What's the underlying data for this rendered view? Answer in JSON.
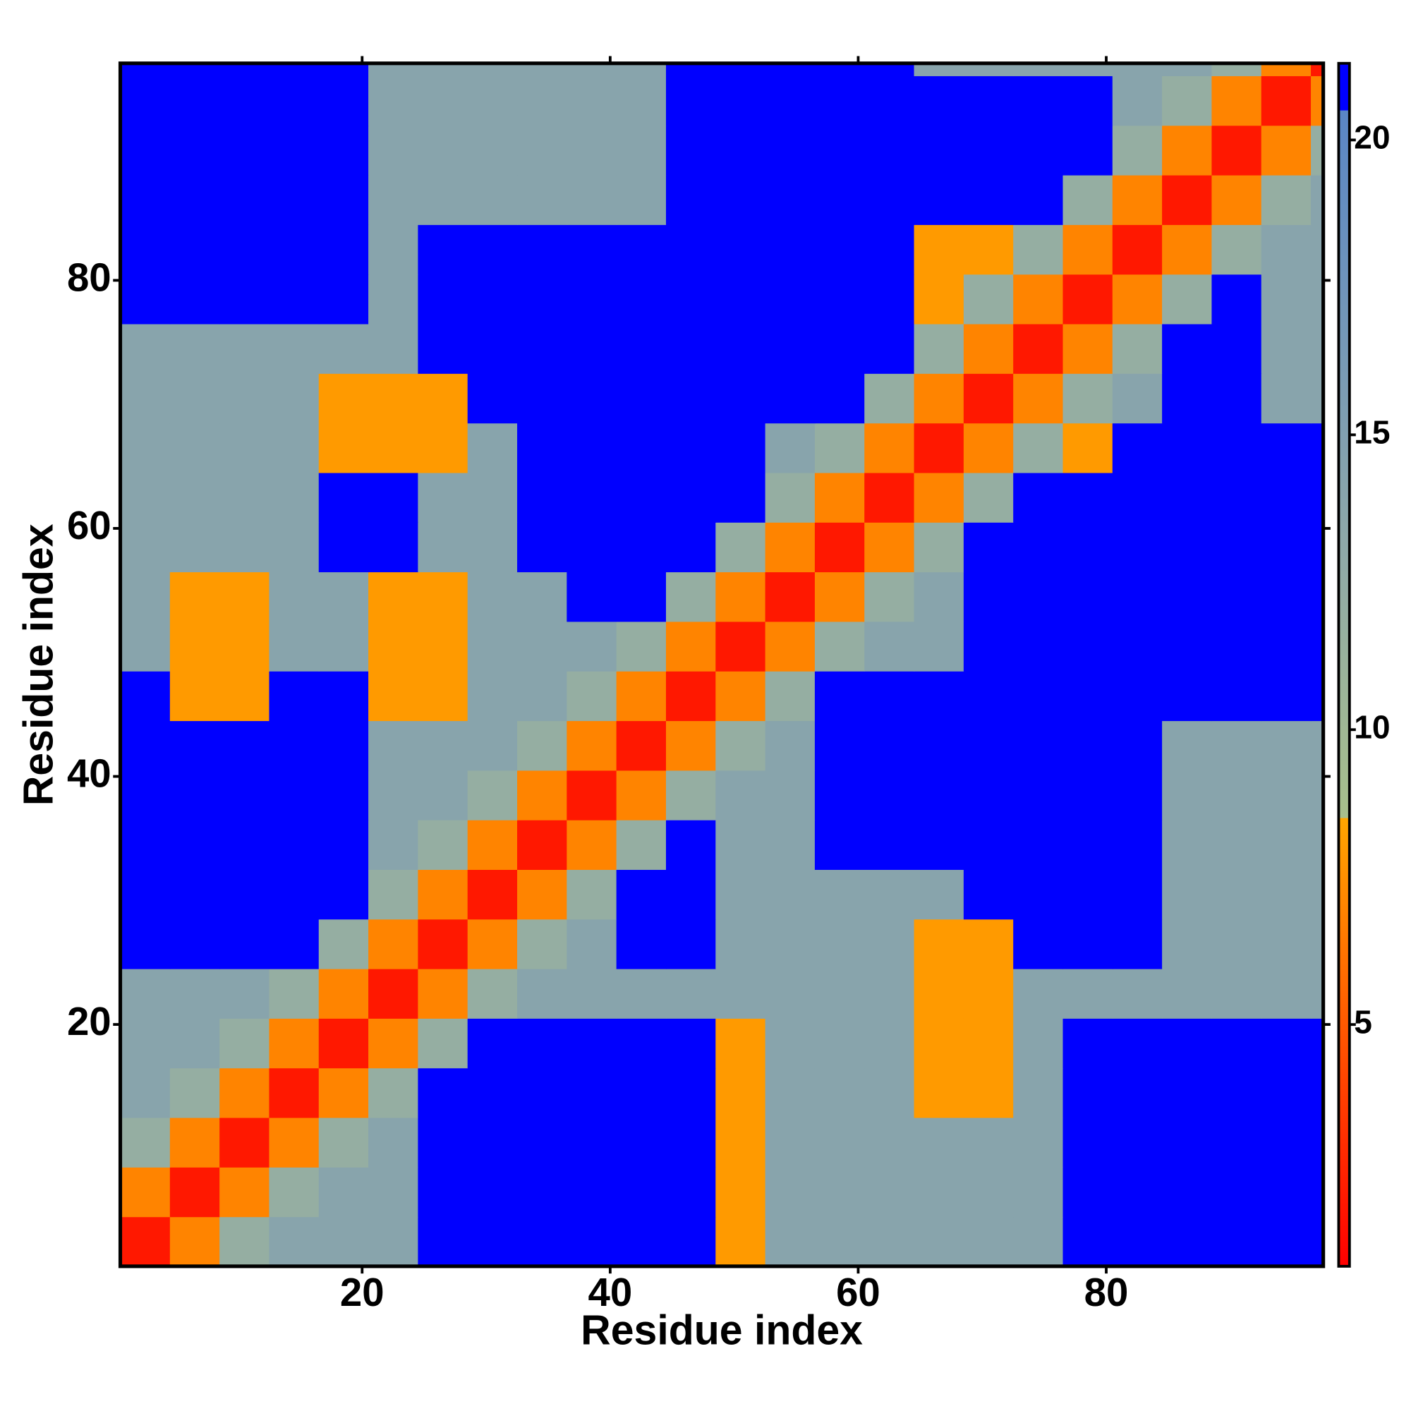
{
  "chart_data": {
    "type": "heatmap",
    "x_label": "Residue index",
    "y_label": "Residue index",
    "xlim": [
      0.5,
      97.5
    ],
    "ylim": [
      0.5,
      97.5
    ],
    "xticks": [
      20,
      40,
      60,
      80
    ],
    "yticks": [
      20,
      40,
      60,
      80
    ],
    "xbins": [
      0.5,
      4.5,
      8.5,
      12.5,
      16.5,
      20.5,
      24.5,
      28.5,
      32.5,
      36.5,
      40.5,
      44.5,
      48.5,
      52.5,
      56.5,
      60.5,
      64.5,
      68.5,
      72.5,
      76.5,
      80.5,
      84.5,
      88.5,
      92.5,
      96.5,
      97.5
    ],
    "ybins": [
      0.5,
      4.5,
      8.5,
      12.5,
      16.5,
      20.5,
      24.5,
      28.5,
      32.5,
      36.5,
      40.5,
      44.5,
      48.5,
      52.5,
      56.5,
      60.5,
      64.5,
      68.5,
      72.5,
      76.5,
      80.5,
      84.5,
      88.5,
      92.5,
      96.5,
      97.5
    ],
    "z": [
      [
        2,
        7,
        12,
        14,
        14,
        14,
        21,
        21,
        21,
        21,
        21,
        21,
        8,
        14,
        14,
        14,
        14,
        14,
        14,
        21,
        21,
        21,
        21,
        21,
        21
      ],
      [
        7,
        2,
        7,
        12,
        14,
        14,
        21,
        21,
        21,
        21,
        21,
        21,
        8,
        14,
        14,
        14,
        14,
        14,
        14,
        21,
        21,
        21,
        21,
        21,
        21
      ],
      [
        12,
        7,
        2,
        7,
        12,
        14,
        21,
        21,
        21,
        21,
        21,
        21,
        8,
        14,
        14,
        14,
        14,
        14,
        14,
        21,
        21,
        21,
        21,
        21,
        21
      ],
      [
        14,
        12,
        7,
        2,
        7,
        12,
        21,
        21,
        21,
        21,
        21,
        21,
        8,
        14,
        14,
        14,
        8,
        8,
        14,
        21,
        21,
        21,
        21,
        21,
        21
      ],
      [
        14,
        14,
        12,
        7,
        2,
        7,
        12,
        21,
        21,
        21,
        21,
        21,
        8,
        14,
        14,
        14,
        8,
        8,
        14,
        21,
        21,
        21,
        21,
        21,
        21
      ],
      [
        14,
        14,
        14,
        12,
        7,
        2,
        7,
        12,
        14,
        14,
        14,
        14,
        14,
        14,
        14,
        14,
        8,
        8,
        14,
        14,
        14,
        14,
        14,
        14,
        14
      ],
      [
        21,
        21,
        21,
        21,
        12,
        7,
        2,
        7,
        12,
        14,
        21,
        21,
        14,
        14,
        14,
        14,
        8,
        8,
        21,
        21,
        21,
        14,
        14,
        14,
        14
      ],
      [
        21,
        21,
        21,
        21,
        21,
        12,
        7,
        2,
        7,
        12,
        21,
        21,
        14,
        14,
        14,
        14,
        14,
        21,
        21,
        21,
        21,
        14,
        14,
        14,
        14
      ],
      [
        21,
        21,
        21,
        21,
        21,
        14,
        12,
        7,
        2,
        7,
        12,
        21,
        14,
        14,
        21,
        21,
        21,
        21,
        21,
        21,
        21,
        14,
        14,
        14,
        14
      ],
      [
        21,
        21,
        21,
        21,
        21,
        14,
        14,
        12,
        7,
        2,
        7,
        12,
        14,
        14,
        21,
        21,
        21,
        21,
        21,
        21,
        21,
        14,
        14,
        14,
        14
      ],
      [
        21,
        21,
        21,
        21,
        21,
        14,
        14,
        14,
        12,
        7,
        2,
        7,
        12,
        14,
        21,
        21,
        21,
        21,
        21,
        21,
        21,
        14,
        14,
        14,
        14
      ],
      [
        21,
        8,
        8,
        21,
        21,
        8,
        8,
        14,
        14,
        12,
        7,
        2,
        7,
        12,
        21,
        21,
        21,
        21,
        21,
        21,
        21,
        21,
        21,
        21,
        21
      ],
      [
        14,
        8,
        8,
        14,
        14,
        8,
        8,
        14,
        14,
        14,
        12,
        7,
        2,
        7,
        12,
        14,
        14,
        21,
        21,
        21,
        21,
        21,
        21,
        21,
        21
      ],
      [
        14,
        8,
        8,
        14,
        14,
        8,
        8,
        14,
        14,
        21,
        21,
        12,
        7,
        2,
        7,
        12,
        14,
        21,
        21,
        21,
        21,
        21,
        21,
        21,
        21
      ],
      [
        14,
        14,
        14,
        14,
        21,
        21,
        14,
        14,
        21,
        21,
        21,
        21,
        12,
        7,
        2,
        7,
        12,
        21,
        21,
        21,
        21,
        21,
        21,
        21,
        21
      ],
      [
        14,
        14,
        14,
        14,
        21,
        21,
        14,
        14,
        21,
        21,
        21,
        21,
        21,
        12,
        7,
        2,
        7,
        12,
        21,
        21,
        21,
        21,
        21,
        21,
        21
      ],
      [
        14,
        14,
        14,
        14,
        8,
        8,
        8,
        14,
        21,
        21,
        21,
        21,
        21,
        14,
        12,
        7,
        2,
        7,
        12,
        8,
        21,
        21,
        21,
        21,
        21
      ],
      [
        14,
        14,
        14,
        14,
        8,
        8,
        8,
        21,
        21,
        21,
        21,
        21,
        21,
        21,
        21,
        12,
        7,
        2,
        7,
        12,
        14,
        21,
        21,
        14,
        14
      ],
      [
        14,
        14,
        14,
        14,
        14,
        14,
        21,
        21,
        21,
        21,
        21,
        21,
        21,
        21,
        21,
        21,
        12,
        7,
        2,
        7,
        12,
        21,
        21,
        14,
        14
      ],
      [
        21,
        21,
        21,
        21,
        21,
        14,
        21,
        21,
        21,
        21,
        21,
        21,
        21,
        21,
        21,
        21,
        8,
        12,
        7,
        2,
        7,
        12,
        21,
        14,
        14
      ],
      [
        21,
        21,
        21,
        21,
        21,
        14,
        21,
        21,
        21,
        21,
        21,
        21,
        21,
        21,
        21,
        21,
        8,
        8,
        12,
        7,
        2,
        7,
        12,
        14,
        14
      ],
      [
        21,
        21,
        21,
        21,
        21,
        14,
        14,
        14,
        14,
        14,
        14,
        21,
        21,
        21,
        21,
        21,
        21,
        21,
        21,
        12,
        7,
        2,
        7,
        12,
        14
      ],
      [
        21,
        21,
        21,
        21,
        21,
        14,
        14,
        14,
        14,
        14,
        14,
        21,
        21,
        21,
        21,
        21,
        21,
        21,
        21,
        21,
        12,
        7,
        2,
        7,
        12
      ],
      [
        21,
        21,
        21,
        21,
        21,
        14,
        14,
        14,
        14,
        14,
        14,
        21,
        21,
        21,
        21,
        21,
        21,
        21,
        21,
        21,
        14,
        12,
        7,
        2,
        7
      ],
      [
        21,
        21,
        21,
        21,
        21,
        14,
        14,
        14,
        14,
        14,
        14,
        21,
        21,
        21,
        21,
        21,
        14,
        14,
        14,
        14,
        14,
        14,
        12,
        7,
        2
      ]
    ],
    "clim": [
      0.9,
      21.3
    ],
    "cticks": [
      5,
      10,
      15,
      20
    ],
    "colorscale": [
      [
        0.9,
        "#ff0000"
      ],
      [
        8.5,
        "#ffa500"
      ],
      [
        8.5,
        "#a8bf8b"
      ],
      [
        13,
        "#8fa9a8"
      ],
      [
        20.5,
        "#5a86c6"
      ],
      [
        20.5,
        "#0000ff"
      ],
      [
        21.3,
        "#0000ff"
      ]
    ]
  }
}
